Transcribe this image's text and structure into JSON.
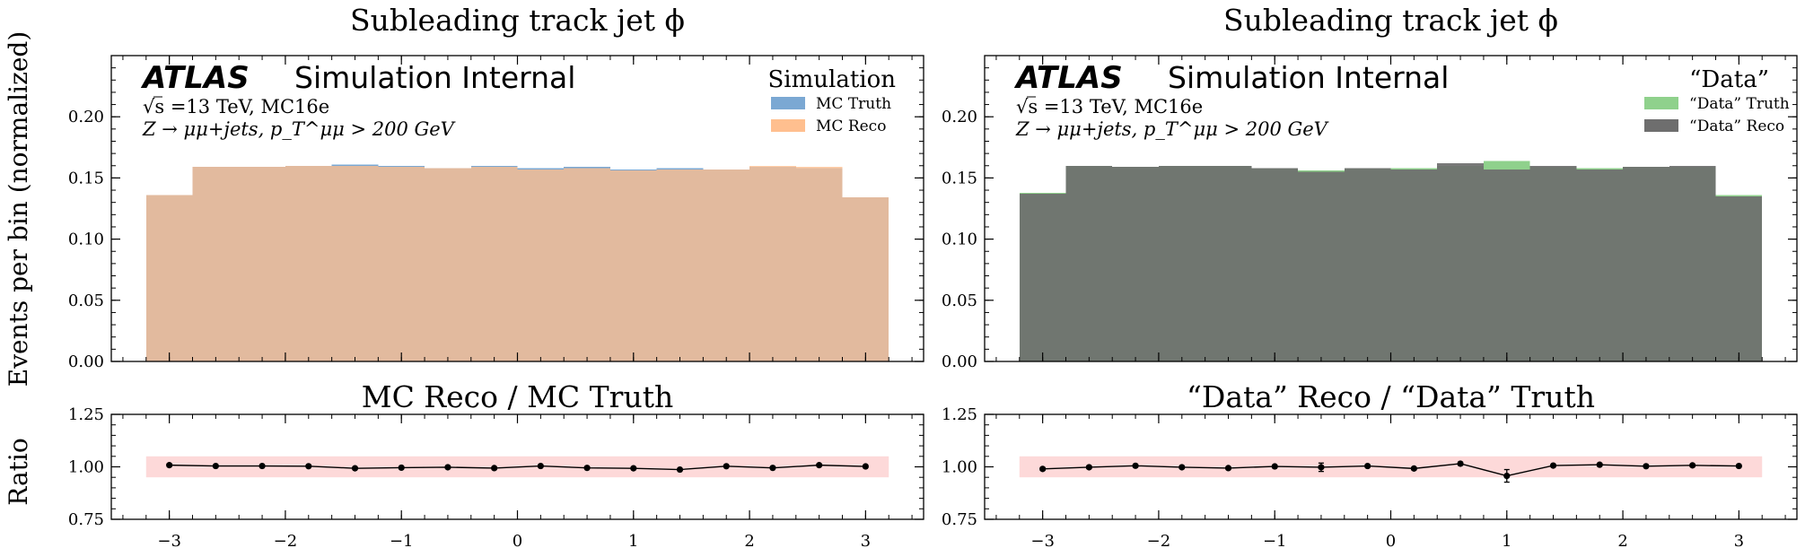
{
  "figure": {
    "shared_ylabel_top": "Events per bin (normalized)",
    "shared_ylabel_bottom": "Ratio"
  },
  "chart_data": [
    {
      "type": "bar",
      "panel": "left-top",
      "title": "Subleading track jet ϕ",
      "ylabel": "Events per bin (normalized)",
      "x_edges": [
        -3.2,
        -2.8,
        -2.4,
        -2.0,
        -1.6,
        -1.2,
        -0.8,
        -0.4,
        0.0,
        0.4,
        0.8,
        1.2,
        1.6,
        2.0,
        2.4,
        2.8,
        3.2
      ],
      "xlim": [
        -3.5,
        3.5
      ],
      "ylim": [
        0,
        0.25
      ],
      "yticks": [
        0.0,
        0.05,
        0.1,
        0.15,
        0.2
      ],
      "ytick_labels": [
        "0.00",
        "0.05",
        "0.10",
        "0.15",
        "0.20"
      ],
      "atlas_label": {
        "bold": "ATLAS",
        "rest": "Simulation Internal"
      },
      "info_lines": [
        "√s =13 TeV, MC16e",
        "Z → μμ+jets, p_T^μμ > 200 GeV"
      ],
      "legend": {
        "title": "Simulation",
        "placement": "top-right"
      },
      "series": [
        {
          "name": "MC Truth",
          "color": "#7ba8d3",
          "values": [
            0.136,
            0.159,
            0.159,
            0.16,
            0.161,
            0.16,
            0.158,
            0.16,
            0.158,
            0.159,
            0.157,
            0.158,
            0.157,
            0.159,
            0.158,
            0.134
          ]
        },
        {
          "name": "MC Reco",
          "color": "#ffbf8f",
          "values": [
            0.136,
            0.159,
            0.159,
            0.16,
            0.16,
            0.159,
            0.158,
            0.159,
            0.157,
            0.158,
            0.156,
            0.157,
            0.157,
            0.16,
            0.159,
            0.134
          ]
        }
      ]
    },
    {
      "type": "bar",
      "panel": "right-top",
      "title": "Subleading track jet ϕ",
      "x_edges": [
        -3.2,
        -2.8,
        -2.4,
        -2.0,
        -1.6,
        -1.2,
        -0.8,
        -0.4,
        0.0,
        0.4,
        0.8,
        1.2,
        1.6,
        2.0,
        2.4,
        2.8,
        3.2
      ],
      "xlim": [
        -3.5,
        3.5
      ],
      "ylim": [
        0,
        0.25
      ],
      "yticks": [
        0.0,
        0.05,
        0.1,
        0.15,
        0.2
      ],
      "ytick_labels": [
        "0.00",
        "0.05",
        "0.10",
        "0.15",
        "0.20"
      ],
      "atlas_label": {
        "bold": "ATLAS",
        "rest": "Simulation Internal"
      },
      "info_lines": [
        "√s =13 TeV, MC16e",
        "Z → μμ+jets, p_T^μμ > 200 GeV"
      ],
      "legend": {
        "title": "“Data”",
        "placement": "top-right"
      },
      "series": [
        {
          "name": "“Data” Truth",
          "color": "#8fd18c",
          "values": [
            0.138,
            0.16,
            0.159,
            0.16,
            0.16,
            0.158,
            0.156,
            0.158,
            0.158,
            0.16,
            0.164,
            0.159,
            0.158,
            0.159,
            0.159,
            0.136
          ]
        },
        {
          "name": "“Data” Reco",
          "color": "#6e6e6e",
          "values": [
            0.137,
            0.16,
            0.159,
            0.16,
            0.16,
            0.158,
            0.155,
            0.158,
            0.157,
            0.162,
            0.157,
            0.16,
            0.157,
            0.159,
            0.16,
            0.135
          ]
        }
      ]
    },
    {
      "type": "line",
      "panel": "left-bottom",
      "title": "MC Reco / MC Truth",
      "ylabel": "Ratio",
      "xlim": [
        -3.5,
        3.5
      ],
      "ylim": [
        0.75,
        1.25
      ],
      "xticks": [
        -3,
        -2,
        -1,
        0,
        1,
        2,
        3
      ],
      "xtick_labels": [
        "−3",
        "−2",
        "−1",
        "0",
        "1",
        "2",
        "3"
      ],
      "yticks": [
        0.75,
        1.0,
        1.25
      ],
      "ytick_labels": [
        "0.75",
        "1.00",
        "1.25"
      ],
      "band": {
        "y": [
          0.95,
          1.05
        ],
        "x": [
          -3.2,
          3.2
        ],
        "color": "#fdd9d9"
      },
      "x": [
        -3.0,
        -2.6,
        -2.2,
        -1.8,
        -1.4,
        -1.0,
        -0.6,
        -0.2,
        0.2,
        0.6,
        1.0,
        1.4,
        1.8,
        2.2,
        2.6,
        3.0
      ],
      "y": [
        1.008,
        1.004,
        1.004,
        1.003,
        0.993,
        0.996,
        0.998,
        0.994,
        1.004,
        0.995,
        0.993,
        0.987,
        1.003,
        0.995,
        1.008,
        1.002
      ],
      "yerr": [
        0.006,
        0.004,
        0.004,
        0.004,
        0.004,
        0.004,
        0.004,
        0.004,
        0.004,
        0.004,
        0.004,
        0.004,
        0.004,
        0.004,
        0.004,
        0.006
      ]
    },
    {
      "type": "line",
      "panel": "right-bottom",
      "title": "“Data” Reco / “Data” Truth",
      "xlim": [
        -3.5,
        3.5
      ],
      "ylim": [
        0.75,
        1.25
      ],
      "xticks": [
        -3,
        -2,
        -1,
        0,
        1,
        2,
        3
      ],
      "xtick_labels": [
        "−3",
        "−2",
        "−1",
        "0",
        "1",
        "2",
        "3"
      ],
      "yticks": [
        0.75,
        1.0,
        1.25
      ],
      "ytick_labels": [
        "0.75",
        "1.00",
        "1.25"
      ],
      "band": {
        "y": [
          0.95,
          1.05
        ],
        "x": [
          -3.2,
          3.2
        ],
        "color": "#fdd9d9"
      },
      "x": [
        -3.0,
        -2.6,
        -2.2,
        -1.8,
        -1.4,
        -1.0,
        -0.6,
        -0.2,
        0.2,
        0.6,
        1.0,
        1.4,
        1.8,
        2.2,
        2.6,
        3.0
      ],
      "y": [
        0.99,
        0.998,
        1.005,
        0.998,
        0.994,
        1.002,
        0.998,
        1.004,
        0.992,
        1.015,
        0.957,
        1.006,
        1.01,
        1.003,
        1.007,
        1.004
      ],
      "yerr": [
        0.006,
        0.006,
        0.006,
        0.006,
        0.006,
        0.006,
        0.02,
        0.006,
        0.006,
        0.008,
        0.03,
        0.006,
        0.006,
        0.006,
        0.006,
        0.006
      ]
    }
  ]
}
